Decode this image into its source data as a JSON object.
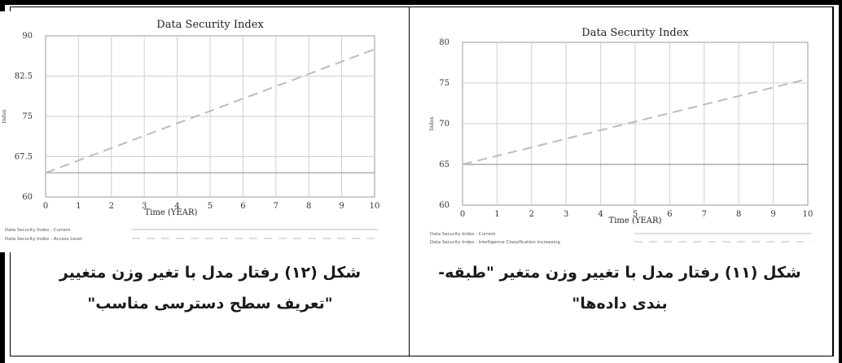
{
  "figures": [
    {
      "caption_line1": "شکل (۱۲) رفتار مدل با تغیر وزن متغییر",
      "caption_line2": "\"تعریف سطح دسترسی مناسب\""
    },
    {
      "caption_line1": "شکل (۱۱) رفتار مدل با تغییر وزن متغیر \"طبقه-",
      "caption_line2": "بندی داده‌ها\""
    }
  ],
  "chart_data": [
    {
      "type": "line",
      "title": "Data Security Index",
      "xlabel": "Time (YEAR)",
      "ylabel": "Index",
      "xlim": [
        0,
        10
      ],
      "ylim": [
        60,
        90
      ],
      "x_ticks": [
        "0",
        "1",
        "2",
        "3",
        "4",
        "5",
        "6",
        "7",
        "8",
        "9",
        "10"
      ],
      "y_ticks": [
        "60",
        "67.5",
        "75",
        "82.5",
        "90"
      ],
      "grid": true,
      "series": [
        {
          "name": "Data Security Index : Current",
          "style": "solid",
          "color": "#9a9a9a",
          "x": [
            0,
            10
          ],
          "y": [
            64.5,
            64.5
          ]
        },
        {
          "name": "Data Security Index : Access Level",
          "style": "dashed",
          "color": "#bdbdbd",
          "x": [
            0,
            10
          ],
          "y": [
            64.5,
            87.5
          ]
        }
      ]
    },
    {
      "type": "line",
      "title": "Data Security Index",
      "xlabel": "Time (YEAR)",
      "ylabel": "Index",
      "xlim": [
        0,
        10
      ],
      "ylim": [
        60,
        80
      ],
      "x_ticks": [
        "0",
        "1",
        "2",
        "3",
        "4",
        "5",
        "6",
        "7",
        "8",
        "9",
        "10"
      ],
      "y_ticks": [
        "60",
        "65",
        "70",
        "75",
        "80"
      ],
      "grid": true,
      "series": [
        {
          "name": "Data Security Index : Current",
          "style": "solid",
          "color": "#9a9a9a",
          "x": [
            0,
            10
          ],
          "y": [
            65,
            65
          ]
        },
        {
          "name": "Data Security Index : Intelligence Classification increasing",
          "style": "dashed",
          "color": "#bdbdbd",
          "x": [
            0,
            10
          ],
          "y": [
            65,
            75.5
          ]
        }
      ]
    }
  ]
}
